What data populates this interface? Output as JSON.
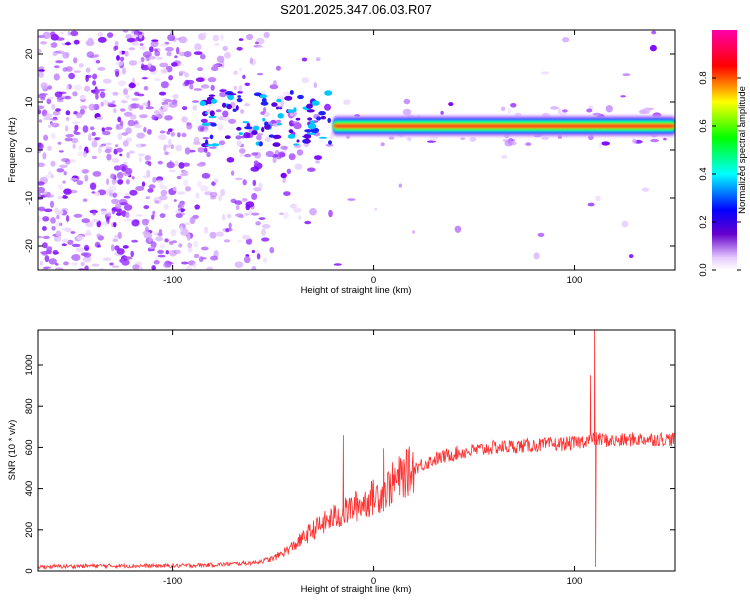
{
  "title": "S201.2025.347.06.03.R07",
  "chart_data": [
    {
      "type": "heatmap",
      "name": "spectrogram",
      "xlabel": "Height of straight line (km)",
      "ylabel": "Frequency (Hz)",
      "xlim": [
        -167,
        150
      ],
      "ylim": [
        -25,
        25
      ],
      "xticks": [
        -100,
        0,
        100
      ],
      "yticks": [
        -20,
        -10,
        0,
        10,
        20
      ],
      "colorbar": {
        "label": "Normalized spectral amplitude",
        "range": [
          0,
          1
        ],
        "ticks": [
          0.0,
          0.2,
          0.4,
          0.6,
          0.8
        ],
        "colormap": [
          "#ffffff",
          "#e6ccff",
          "#6600cc",
          "#0000ff",
          "#00ffff",
          "#00ff00",
          "#ffff00",
          "#ff0000",
          "#ff00aa"
        ]
      },
      "band": {
        "center_frequency_hz": 5,
        "peak_amplitude": 0.9,
        "noise_region_km": [
          -167,
          -40
        ],
        "band_start_km": -20
      }
    },
    {
      "type": "line",
      "name": "snr",
      "xlabel": "Height of straight line (km)",
      "ylabel": "SNR (10 * v/v)",
      "xlim": [
        -167,
        150
      ],
      "ylim": [
        0,
        1170
      ],
      "xticks": [
        -100,
        0,
        100
      ],
      "yticks": [
        0,
        200,
        400,
        600,
        800,
        1000
      ],
      "color": "#ff3030",
      "series": [
        {
          "name": "SNR",
          "x": [
            -167,
            -140,
            -120,
            -100,
            -80,
            -60,
            -50,
            -40,
            -30,
            -20,
            -15,
            -10,
            -5,
            0,
            5,
            10,
            20,
            30,
            40,
            60,
            80,
            100,
            108,
            110,
            112,
            120,
            130,
            150
          ],
          "y": [
            20,
            25,
            25,
            25,
            30,
            40,
            60,
            120,
            200,
            260,
            280,
            310,
            330,
            360,
            380,
            430,
            500,
            540,
            570,
            600,
            610,
            620,
            640,
            640,
            640,
            630,
            640,
            640
          ]
        }
      ],
      "spikes": [
        {
          "x": -15,
          "y": 660
        },
        {
          "x": 5,
          "y": 595
        },
        {
          "x": 108,
          "y": 950
        },
        {
          "x": 110,
          "y": 1170
        },
        {
          "x": 110.5,
          "y": 20
        }
      ]
    }
  ]
}
